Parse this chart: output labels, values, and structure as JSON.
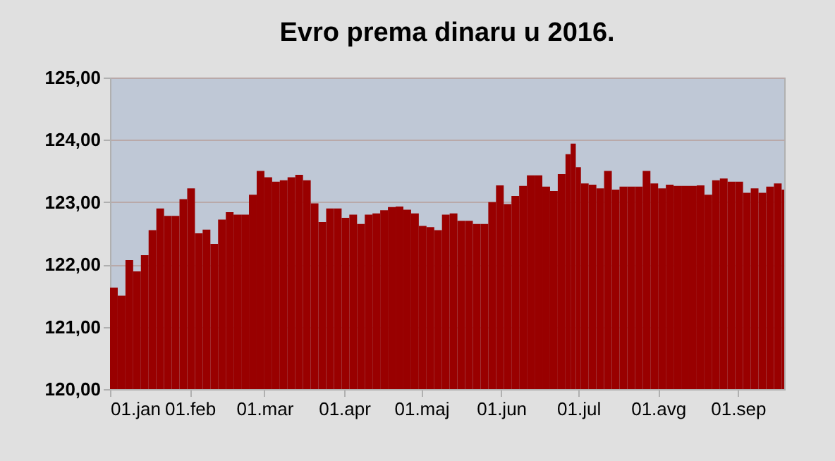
{
  "chart_data": {
    "type": "bar",
    "title": "Evro prema dinaru u 2016.",
    "x": [
      "2016-01-01",
      "2016-01-04",
      "2016-01-07",
      "2016-01-10",
      "2016-01-13",
      "2016-01-16",
      "2016-01-19",
      "2016-01-22",
      "2016-01-25",
      "2016-01-28",
      "2016-01-31",
      "2016-02-03",
      "2016-02-06",
      "2016-02-09",
      "2016-02-12",
      "2016-02-15",
      "2016-02-18",
      "2016-02-21",
      "2016-02-24",
      "2016-02-27",
      "2016-03-01",
      "2016-03-04",
      "2016-03-07",
      "2016-03-10",
      "2016-03-13",
      "2016-03-16",
      "2016-03-19",
      "2016-03-22",
      "2016-03-25",
      "2016-03-28",
      "2016-03-31",
      "2016-04-03",
      "2016-04-06",
      "2016-04-09",
      "2016-04-12",
      "2016-04-15",
      "2016-04-18",
      "2016-04-21",
      "2016-04-24",
      "2016-04-27",
      "2016-04-30",
      "2016-05-03",
      "2016-05-06",
      "2016-05-09",
      "2016-05-12",
      "2016-05-15",
      "2016-05-18",
      "2016-05-21",
      "2016-05-24",
      "2016-05-27",
      "2016-05-30",
      "2016-06-02",
      "2016-06-05",
      "2016-06-08",
      "2016-06-11",
      "2016-06-14",
      "2016-06-17",
      "2016-06-20",
      "2016-06-23",
      "2016-06-26",
      "2016-06-28",
      "2016-06-30",
      "2016-07-02",
      "2016-07-05",
      "2016-07-08",
      "2016-07-11",
      "2016-07-14",
      "2016-07-17",
      "2016-07-20",
      "2016-07-23",
      "2016-07-26",
      "2016-07-29",
      "2016-08-01",
      "2016-08-04",
      "2016-08-07",
      "2016-08-10",
      "2016-08-13",
      "2016-08-16",
      "2016-08-19",
      "2016-08-22",
      "2016-08-25",
      "2016-08-28",
      "2016-08-31",
      "2016-09-03",
      "2016-09-06",
      "2016-09-09",
      "2016-09-12",
      "2016-09-15",
      "2016-09-18"
    ],
    "values": [
      121.63,
      121.5,
      122.07,
      121.89,
      122.15,
      122.55,
      122.9,
      122.78,
      122.78,
      123.05,
      123.22,
      122.5,
      122.56,
      122.33,
      122.72,
      122.84,
      122.8,
      122.8,
      123.12,
      123.5,
      123.4,
      123.33,
      123.35,
      123.4,
      123.44,
      123.35,
      122.98,
      122.68,
      122.9,
      122.9,
      122.75,
      122.8,
      122.65,
      122.8,
      122.82,
      122.87,
      122.92,
      122.93,
      122.88,
      122.82,
      122.62,
      122.6,
      122.55,
      122.8,
      122.82,
      122.7,
      122.7,
      122.65,
      122.65,
      123.0,
      123.27,
      122.97,
      123.1,
      123.26,
      123.43,
      123.43,
      123.25,
      123.18,
      123.45,
      123.77,
      123.94,
      123.56,
      123.3,
      123.28,
      123.22,
      123.5,
      123.2,
      123.25,
      123.25,
      123.25,
      123.5,
      123.3,
      123.22,
      123.28,
      123.26,
      123.26,
      123.26,
      123.27,
      123.12,
      123.35,
      123.38,
      123.33,
      123.33,
      123.15,
      123.22,
      123.15,
      123.25,
      123.3,
      123.2
    ],
    "color": "#990000",
    "xlim": [
      "2016-01-01",
      "2016-09-19"
    ],
    "xticks": [
      {
        "value": "2016-01-01",
        "label": "01.jan"
      },
      {
        "value": "2016-02-01",
        "label": "01.feb"
      },
      {
        "value": "2016-03-01",
        "label": "01.mar"
      },
      {
        "value": "2016-04-01",
        "label": "01.apr"
      },
      {
        "value": "2016-05-01",
        "label": "01.maj"
      },
      {
        "value": "2016-06-01",
        "label": "01.jun"
      },
      {
        "value": "2016-07-01",
        "label": "01.jul"
      },
      {
        "value": "2016-08-01",
        "label": "01.avg"
      },
      {
        "value": "2016-09-01",
        "label": "01.sep"
      }
    ],
    "ylim": [
      120,
      125
    ],
    "yticks": [
      {
        "value": 120,
        "label": "120,00"
      },
      {
        "value": 121,
        "label": "121,00"
      },
      {
        "value": 122,
        "label": "122,00"
      },
      {
        "value": 123,
        "label": "123,00"
      },
      {
        "value": 124,
        "label": "124,00"
      },
      {
        "value": 125,
        "label": "125,00"
      }
    ],
    "grid": "y"
  }
}
